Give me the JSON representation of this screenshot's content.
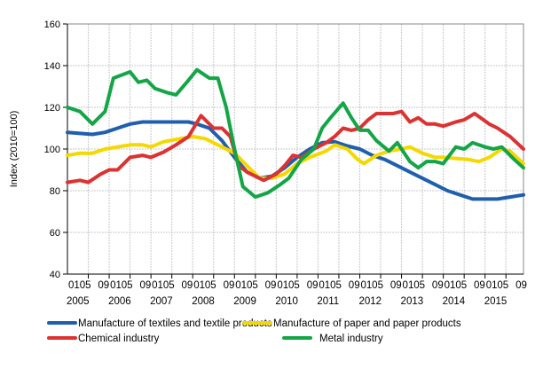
{
  "chart_data": {
    "type": "line",
    "title": "",
    "xlabel": "",
    "ylabel": "Index (2010=100)",
    "ylim": [
      40,
      160
    ],
    "yticks": [
      40,
      60,
      80,
      100,
      120,
      140,
      160
    ],
    "xlim": [
      2005,
      2015.92
    ],
    "years": [
      "2005",
      "2006",
      "2007",
      "2008",
      "2009",
      "2010",
      "2011",
      "2012",
      "2013",
      "2014",
      "2015"
    ],
    "month_ticks": [
      "01",
      "05",
      "09"
    ],
    "grid": true,
    "legend_position": "bottom",
    "series": [
      {
        "name": "Manufacture of textiles and textile products",
        "color": "#1f5fae",
        "points": [
          [
            2005.0,
            108
          ],
          [
            2005.3,
            107.5
          ],
          [
            2005.6,
            107
          ],
          [
            2005.9,
            108
          ],
          [
            2006.2,
            110
          ],
          [
            2006.5,
            112
          ],
          [
            2006.8,
            113
          ],
          [
            2007.2,
            113
          ],
          [
            2007.6,
            113
          ],
          [
            2007.9,
            113
          ],
          [
            2008.1,
            112
          ],
          [
            2008.4,
            110
          ],
          [
            2008.7,
            104
          ],
          [
            2009.0,
            96
          ],
          [
            2009.3,
            89
          ],
          [
            2009.6,
            86
          ],
          [
            2009.9,
            87
          ],
          [
            2010.2,
            91
          ],
          [
            2010.5,
            96
          ],
          [
            2010.8,
            100
          ],
          [
            2011.1,
            103
          ],
          [
            2011.4,
            103.5
          ],
          [
            2011.7,
            101.5
          ],
          [
            2012.0,
            100
          ],
          [
            2012.3,
            97
          ],
          [
            2012.6,
            95
          ],
          [
            2012.9,
            92
          ],
          [
            2013.2,
            89
          ],
          [
            2013.5,
            86
          ],
          [
            2013.8,
            83
          ],
          [
            2014.1,
            80
          ],
          [
            2014.4,
            78
          ],
          [
            2014.7,
            76
          ],
          [
            2015.0,
            76
          ],
          [
            2015.3,
            76
          ],
          [
            2015.6,
            77
          ],
          [
            2015.92,
            78
          ]
        ]
      },
      {
        "name": "Manufacture of paper and paper products",
        "color": "#f5d800",
        "points": [
          [
            2005.0,
            97
          ],
          [
            2005.3,
            98
          ],
          [
            2005.6,
            98
          ],
          [
            2005.9,
            100
          ],
          [
            2006.2,
            101
          ],
          [
            2006.5,
            102
          ],
          [
            2006.8,
            102
          ],
          [
            2007.0,
            101
          ],
          [
            2007.3,
            103.5
          ],
          [
            2007.7,
            105
          ],
          [
            2008.0,
            106
          ],
          [
            2008.3,
            105
          ],
          [
            2008.7,
            101
          ],
          [
            2009.0,
            98
          ],
          [
            2009.3,
            92
          ],
          [
            2009.6,
            86
          ],
          [
            2009.9,
            86
          ],
          [
            2010.2,
            88
          ],
          [
            2010.5,
            93
          ],
          [
            2010.8,
            96
          ],
          [
            2011.2,
            99
          ],
          [
            2011.4,
            102
          ],
          [
            2011.7,
            100
          ],
          [
            2011.95,
            95
          ],
          [
            2012.1,
            93
          ],
          [
            2012.4,
            97
          ],
          [
            2012.7,
            99
          ],
          [
            2013.0,
            100
          ],
          [
            2013.2,
            101
          ],
          [
            2013.5,
            98
          ],
          [
            2013.8,
            96
          ],
          [
            2014.0,
            96
          ],
          [
            2014.3,
            95.5
          ],
          [
            2014.6,
            95
          ],
          [
            2014.85,
            94
          ],
          [
            2015.1,
            96
          ],
          [
            2015.4,
            100
          ],
          [
            2015.6,
            99
          ],
          [
            2015.92,
            93
          ]
        ]
      },
      {
        "name": "Chemical industry",
        "color": "#dc3232",
        "points": [
          [
            2005.0,
            84
          ],
          [
            2005.3,
            85
          ],
          [
            2005.5,
            84
          ],
          [
            2005.8,
            88
          ],
          [
            2006.0,
            90
          ],
          [
            2006.2,
            90
          ],
          [
            2006.5,
            96
          ],
          [
            2006.8,
            97
          ],
          [
            2007.0,
            96
          ],
          [
            2007.3,
            98.5
          ],
          [
            2007.6,
            102
          ],
          [
            2007.9,
            106
          ],
          [
            2008.2,
            116
          ],
          [
            2008.5,
            110
          ],
          [
            2008.7,
            110
          ],
          [
            2008.9,
            106
          ],
          [
            2009.1,
            92
          ],
          [
            2009.3,
            89
          ],
          [
            2009.7,
            85
          ],
          [
            2010.0,
            88
          ],
          [
            2010.2,
            92
          ],
          [
            2010.4,
            97
          ],
          [
            2010.6,
            96
          ],
          [
            2010.9,
            100
          ],
          [
            2011.2,
            103
          ],
          [
            2011.4,
            106
          ],
          [
            2011.6,
            110
          ],
          [
            2011.8,
            109
          ],
          [
            2012.0,
            110
          ],
          [
            2012.2,
            114
          ],
          [
            2012.4,
            117
          ],
          [
            2012.6,
            117
          ],
          [
            2012.8,
            117
          ],
          [
            2013.0,
            118
          ],
          [
            2013.2,
            113
          ],
          [
            2013.4,
            115
          ],
          [
            2013.6,
            112
          ],
          [
            2013.8,
            112
          ],
          [
            2014.0,
            111
          ],
          [
            2014.3,
            113
          ],
          [
            2014.5,
            114
          ],
          [
            2014.75,
            117
          ],
          [
            2015.1,
            112
          ],
          [
            2015.3,
            110
          ],
          [
            2015.6,
            106
          ],
          [
            2015.92,
            100
          ]
        ]
      },
      {
        "name": "Metal industry",
        "color": "#13a546",
        "points": [
          [
            2005.0,
            120
          ],
          [
            2005.3,
            118
          ],
          [
            2005.6,
            112
          ],
          [
            2005.9,
            118
          ],
          [
            2006.1,
            134
          ],
          [
            2006.5,
            137
          ],
          [
            2006.7,
            132
          ],
          [
            2006.9,
            133
          ],
          [
            2007.1,
            129
          ],
          [
            2007.4,
            127
          ],
          [
            2007.6,
            126
          ],
          [
            2007.9,
            133
          ],
          [
            2008.1,
            138
          ],
          [
            2008.4,
            134
          ],
          [
            2008.6,
            134
          ],
          [
            2008.8,
            120
          ],
          [
            2009.0,
            100
          ],
          [
            2009.2,
            82
          ],
          [
            2009.5,
            77
          ],
          [
            2009.8,
            79
          ],
          [
            2010.1,
            83
          ],
          [
            2010.3,
            86
          ],
          [
            2010.6,
            95
          ],
          [
            2010.9,
            100
          ],
          [
            2011.1,
            110
          ],
          [
            2011.3,
            115
          ],
          [
            2011.6,
            122
          ],
          [
            2011.8,
            115
          ],
          [
            2012.0,
            109
          ],
          [
            2012.2,
            109
          ],
          [
            2012.4,
            104
          ],
          [
            2012.7,
            99
          ],
          [
            2012.9,
            103
          ],
          [
            2013.2,
            94
          ],
          [
            2013.4,
            91
          ],
          [
            2013.6,
            94
          ],
          [
            2013.8,
            94
          ],
          [
            2014.0,
            93
          ],
          [
            2014.3,
            101
          ],
          [
            2014.5,
            100
          ],
          [
            2014.7,
            103
          ],
          [
            2015.0,
            101
          ],
          [
            2015.2,
            100
          ],
          [
            2015.4,
            101
          ],
          [
            2015.7,
            95
          ],
          [
            2015.92,
            91
          ]
        ]
      }
    ]
  }
}
